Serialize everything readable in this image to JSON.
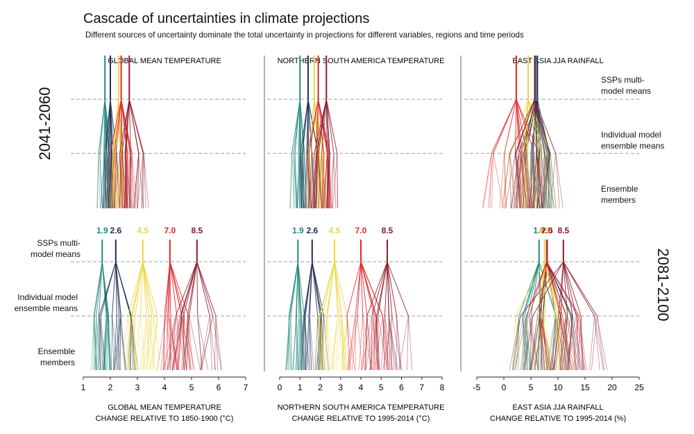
{
  "title": "Cascade of uncertainties in climate projections",
  "subtitle": "Different sources of uncertainty dominate the total uncertainty in projections for different variables, regions and time periods",
  "periods": [
    "2041-2060",
    "2081-2100"
  ],
  "level_labels": {
    "ssp_means": [
      "SSPs multi-",
      "model means"
    ],
    "model_means": [
      "Individual model",
      "ensemble means"
    ],
    "members": [
      "Ensemble",
      "members"
    ]
  },
  "scenarios": [
    {
      "label": "1.9",
      "color": "#1f8a7a"
    },
    {
      "label": "2.6",
      "color": "#1d2f55"
    },
    {
      "label": "4.5",
      "color": "#ecd63a"
    },
    {
      "label": "7.0",
      "color": "#e0262c"
    },
    {
      "label": "8.5",
      "color": "#8b1a2b"
    }
  ],
  "chart_data": [
    {
      "type": "line",
      "panel_title": "GLOBAL MEAN TEMPERATURE",
      "xlabel_line1": "GLOBAL MEAN TEMPERATURE",
      "xlabel_line2": "CHANGE RELATIVE TO 1850-1900  (°C)",
      "xlim": [
        1,
        7
      ],
      "ticks": [
        1,
        2,
        3,
        4,
        5,
        6,
        7
      ],
      "ssp_means_2041_2060": [
        1.8,
        2.0,
        2.3,
        2.4,
        2.7
      ],
      "ssp_means_2081_2100": [
        1.7,
        2.2,
        3.2,
        4.2,
        5.2
      ],
      "spread_2041_2060": [
        0.3,
        0.35,
        0.4,
        0.45,
        0.5
      ],
      "spread_2081_2100": [
        0.4,
        0.55,
        0.7,
        0.85,
        1.0
      ]
    },
    {
      "type": "line",
      "panel_title": "NORTHERN SOUTH AMERICA TEMPERATURE",
      "xlabel_line1": "NORTHERN SOUTH AMERICA TEMPERATURE",
      "xlabel_line2": "CHANGE RELATIVE TO 1995-2014  (°C)",
      "xlim": [
        0,
        8
      ],
      "ticks": [
        0,
        1,
        2,
        3,
        4,
        5,
        6,
        7,
        8
      ],
      "ssp_means_2041_2060": [
        1.0,
        1.4,
        1.7,
        1.9,
        2.3
      ],
      "ssp_means_2081_2100": [
        0.9,
        1.6,
        2.7,
        4.0,
        5.3
      ],
      "spread_2041_2060": [
        0.4,
        0.45,
        0.5,
        0.55,
        0.6
      ],
      "spread_2081_2100": [
        0.45,
        0.6,
        0.8,
        1.0,
        1.2
      ]
    },
    {
      "type": "line",
      "panel_title": "EAST ASIA JJA RAINFALL",
      "xlabel_line1": "EAST ASIA JJA RAINFALL",
      "xlabel_line2": "CHANGE RELATIVE TO 1995-2014  (%)",
      "xlim": [
        -5,
        25
      ],
      "ticks": [
        -5,
        0,
        5,
        10,
        15,
        20,
        25
      ],
      "ssp_means_2041_2060": [
        5.9,
        6.2,
        4.5,
        2.3,
        5.7
      ],
      "ssp_means_2081_2100": [
        6.5,
        8.0,
        7.5,
        7.9,
        11.0
      ],
      "spread_2041_2060": [
        3.0,
        3.5,
        4.0,
        4.5,
        4.5
      ],
      "spread_2081_2100": [
        3.5,
        4.5,
        5.5,
        6.0,
        7.0
      ]
    }
  ]
}
